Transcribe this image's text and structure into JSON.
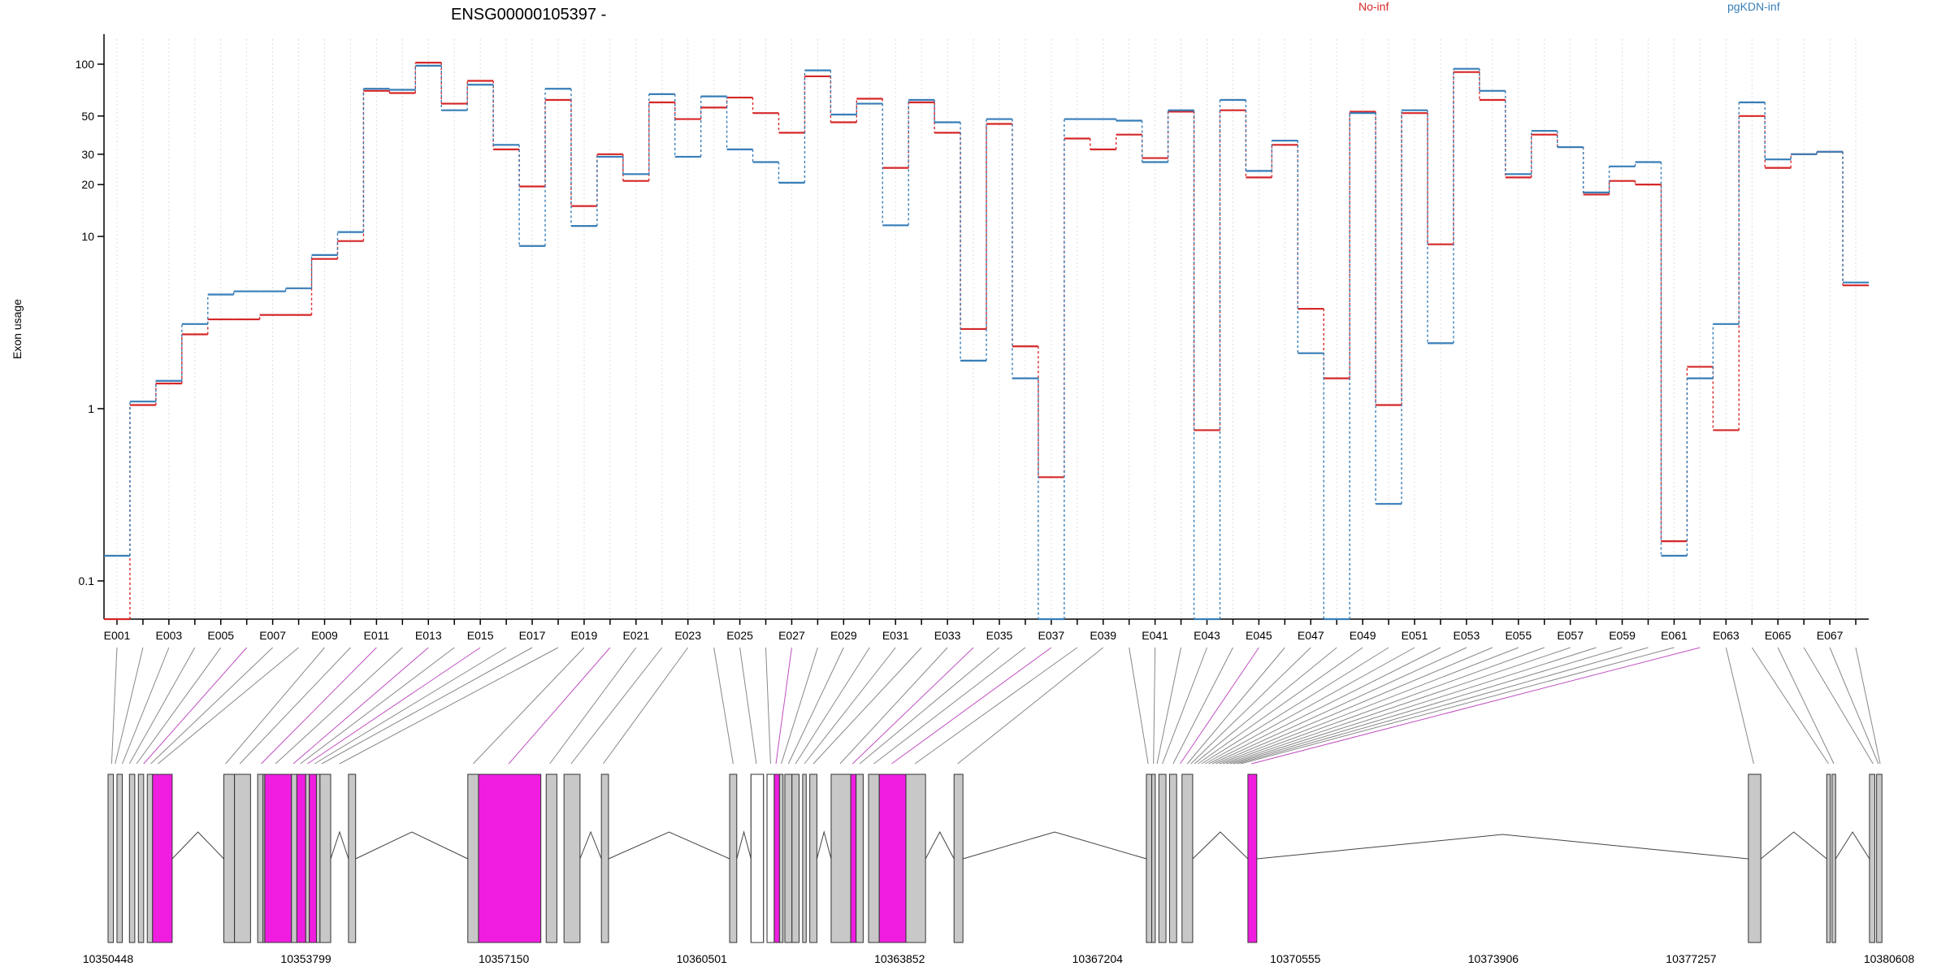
{
  "chart_data": {
    "type": "line",
    "title": "ENSG00000105397 -",
    "ylabel": "Exon usage",
    "y_scale": "log",
    "ylim": [
      0.06,
      140
    ],
    "yticks": [
      0.1,
      1,
      10,
      20,
      30,
      50,
      100
    ],
    "ytick_labels": [
      "0.1",
      "1",
      "10",
      "20",
      "30",
      "50",
      "100"
    ],
    "categories": [
      "E001",
      "E002",
      "E003",
      "E004",
      "E005",
      "E006",
      "E007",
      "E008",
      "E009",
      "E010",
      "E011",
      "E012",
      "E013",
      "E014",
      "E015",
      "E016",
      "E017",
      "E018",
      "E019",
      "E020",
      "E021",
      "E022",
      "E023",
      "E024",
      "E025",
      "E026",
      "E027",
      "E028",
      "E029",
      "E030",
      "E031",
      "E032",
      "E033",
      "E034",
      "E035",
      "E036",
      "E037",
      "E038",
      "E039",
      "E040",
      "E041",
      "E042",
      "E043",
      "E044",
      "E045",
      "E046",
      "E047",
      "E048",
      "E049",
      "E050",
      "E051",
      "E052",
      "E053",
      "E054",
      "E055",
      "E056",
      "E057",
      "E058",
      "E059",
      "E060",
      "E061",
      "E062",
      "E063",
      "E064",
      "E065",
      "E066",
      "E067",
      "E068"
    ],
    "tick_labels": [
      "E001",
      "E003",
      "E005",
      "E007",
      "E009",
      "E011",
      "E013",
      "E015",
      "E017",
      "E019",
      "E021",
      "E023",
      "E025",
      "E027",
      "E029",
      "E031",
      "E033",
      "E035",
      "E037",
      "E039",
      "E041",
      "E043",
      "E045",
      "E047",
      "E049",
      "E051",
      "E053",
      "E055",
      "E057",
      "E059",
      "E061",
      "E063",
      "E065",
      "E067"
    ],
    "legend_placement": "top",
    "grid": "vertical dotted",
    "series": [
      {
        "name": "No-inf",
        "color": "#d62728",
        "values": [
          0.06,
          1.05,
          1.4,
          2.7,
          3.3,
          3.3,
          3.5,
          3.5,
          7.4,
          9.4,
          70,
          68,
          102,
          59,
          80,
          32,
          19.5,
          62,
          15,
          30,
          21,
          60,
          48,
          56,
          64,
          52,
          40,
          85,
          46,
          63,
          25,
          60,
          40,
          2.9,
          45,
          2.3,
          0.4,
          37,
          32,
          39,
          28.5,
          53,
          0.75,
          54,
          22,
          34,
          3.8,
          1.5,
          53,
          1.05,
          52,
          9,
          90,
          62,
          22,
          39,
          33,
          17.5,
          21,
          20,
          0.17,
          1.75,
          0.75,
          50,
          25,
          30,
          31,
          5.2
        ]
      },
      {
        "name": "pgKDN-inf",
        "color": "#377eb8",
        "values": [
          0.14,
          1.1,
          1.45,
          3.1,
          4.6,
          4.8,
          4.8,
          5,
          7.8,
          10.6,
          72,
          71,
          98,
          54,
          76,
          34,
          8.8,
          72,
          11.5,
          29,
          23,
          67,
          29,
          65,
          32,
          27,
          20.5,
          92,
          51,
          59,
          11.6,
          62,
          46,
          1.9,
          48,
          1.5,
          0.06,
          48,
          48,
          47,
          27,
          54,
          0.06,
          62,
          24,
          36,
          2.1,
          0.06,
          52,
          0.28,
          54,
          2.4,
          94,
          70,
          23,
          41,
          33,
          18,
          25.5,
          27,
          0.14,
          1.5,
          3.1,
          60,
          28,
          30,
          31,
          5.4
        ]
      }
    ]
  },
  "gene_model": {
    "coordinate_labels": [
      "10350448",
      "10353799",
      "10357150",
      "10360501",
      "10363852",
      "10367204",
      "10370555",
      "10373906",
      "10377257",
      "10380608"
    ],
    "highlight_color": "#f01de0",
    "exon_color": "#c8c8c8"
  }
}
